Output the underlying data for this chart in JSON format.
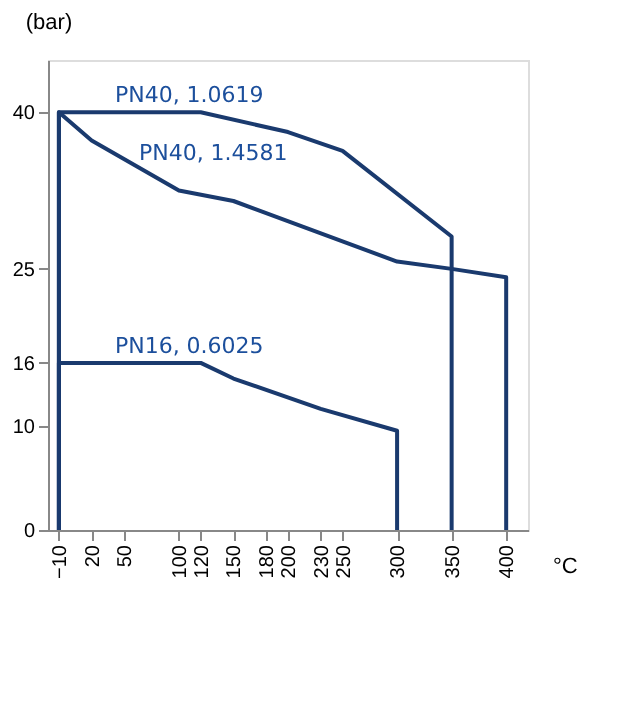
{
  "chart_data": {
    "type": "line",
    "xlabel": "°C",
    "ylabel": "(bar)",
    "x": [
      -10,
      -10,
      120,
      200,
      250,
      350,
      350
    ],
    "series": [
      {
        "name": "PN40, 1.0619",
        "color": "#1a3a6e",
        "values": [
          0,
          40,
          40,
          38.1,
          36.3,
          28.1,
          0
        ]
      },
      {
        "name": "PN40, 1.4581",
        "color": "#1a3a6e",
        "x": [
          -10,
          -10,
          20,
          100,
          150,
          300,
          350,
          400,
          400
        ],
        "values": [
          0,
          40,
          37.3,
          32.5,
          31.5,
          25.7,
          25,
          24.2,
          0
        ]
      },
      {
        "name": "PN16, 0.6025",
        "color": "#1a3a6e",
        "x": [
          -10,
          -10,
          120,
          150,
          230,
          300,
          300
        ],
        "values": [
          0,
          16,
          16,
          14.5,
          11.6,
          9.5,
          0
        ]
      }
    ],
    "xlim": [
      -20,
      420
    ],
    "ylim": [
      0,
      45
    ],
    "xticks": [
      -10,
      20,
      50,
      100,
      120,
      150,
      180,
      200,
      230,
      250,
      300,
      350,
      400
    ],
    "yticks": [
      0,
      10,
      16,
      25,
      40
    ],
    "grid": false,
    "marker": "none",
    "line_style": "solid"
  }
}
